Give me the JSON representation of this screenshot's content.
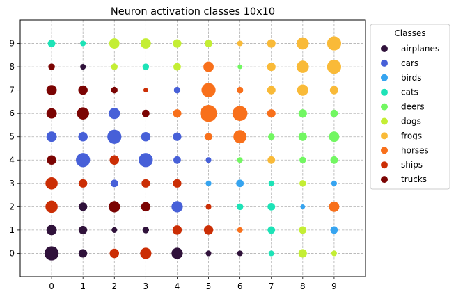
{
  "chart_data": {
    "type": "scatter",
    "title": "Neuron activation classes 10x10",
    "xlabel": "",
    "ylabel": "",
    "xlim": [
      -1,
      10
    ],
    "ylim": [
      -1,
      10
    ],
    "xticks": [
      0,
      1,
      2,
      3,
      4,
      5,
      6,
      7,
      8,
      9
    ],
    "yticks": [
      0,
      1,
      2,
      3,
      4,
      5,
      6,
      7,
      8,
      9
    ],
    "grid": true,
    "grid_style": "dashed",
    "legend": {
      "title": "Classes",
      "placement": "outside-right-top",
      "entries": [
        {
          "label": "airplanes",
          "color": "#30123b"
        },
        {
          "label": "cars",
          "color": "#4760d8"
        },
        {
          "label": "birds",
          "color": "#36a4f0"
        },
        {
          "label": "cats",
          "color": "#1de3b7"
        },
        {
          "label": "deers",
          "color": "#72f762"
        },
        {
          "label": "dogs",
          "color": "#c4ee34"
        },
        {
          "label": "frogs",
          "color": "#f9ba38"
        },
        {
          "label": "horses",
          "color": "#f8701b"
        },
        {
          "label": "ships",
          "color": "#cb2e05"
        },
        {
          "label": "trucks",
          "color": "#7b0403"
        }
      ]
    },
    "points": [
      {
        "x": 0,
        "y": 9,
        "class": "cats",
        "size": 0.4
      },
      {
        "x": 1,
        "y": 9,
        "class": "cats",
        "size": 0.3
      },
      {
        "x": 2,
        "y": 9,
        "class": "dogs",
        "size": 0.55
      },
      {
        "x": 3,
        "y": 9,
        "class": "dogs",
        "size": 0.55
      },
      {
        "x": 4,
        "y": 9,
        "class": "dogs",
        "size": 0.45
      },
      {
        "x": 5,
        "y": 9,
        "class": "dogs",
        "size": 0.4
      },
      {
        "x": 6,
        "y": 9,
        "class": "frogs",
        "size": 0.3
      },
      {
        "x": 7,
        "y": 9,
        "class": "frogs",
        "size": 0.45
      },
      {
        "x": 8,
        "y": 9,
        "class": "frogs",
        "size": 0.65
      },
      {
        "x": 9,
        "y": 9,
        "class": "frogs",
        "size": 0.75
      },
      {
        "x": 0,
        "y": 8,
        "class": "trucks",
        "size": 0.35
      },
      {
        "x": 1,
        "y": 8,
        "class": "airplanes",
        "size": 0.3
      },
      {
        "x": 2,
        "y": 8,
        "class": "dogs",
        "size": 0.35
      },
      {
        "x": 3,
        "y": 8,
        "class": "cats",
        "size": 0.35
      },
      {
        "x": 4,
        "y": 8,
        "class": "dogs",
        "size": 0.4
      },
      {
        "x": 5,
        "y": 8,
        "class": "horses",
        "size": 0.55
      },
      {
        "x": 6,
        "y": 8,
        "class": "deers",
        "size": 0.25
      },
      {
        "x": 7,
        "y": 8,
        "class": "frogs",
        "size": 0.45
      },
      {
        "x": 8,
        "y": 8,
        "class": "frogs",
        "size": 0.65
      },
      {
        "x": 9,
        "y": 8,
        "class": "frogs",
        "size": 0.75
      },
      {
        "x": 0,
        "y": 7,
        "class": "trucks",
        "size": 0.55
      },
      {
        "x": 1,
        "y": 7,
        "class": "trucks",
        "size": 0.5
      },
      {
        "x": 2,
        "y": 7,
        "class": "trucks",
        "size": 0.35
      },
      {
        "x": 3,
        "y": 7,
        "class": "ships",
        "size": 0.25
      },
      {
        "x": 4,
        "y": 7,
        "class": "cars",
        "size": 0.35
      },
      {
        "x": 5,
        "y": 7,
        "class": "horses",
        "size": 0.75
      },
      {
        "x": 6,
        "y": 7,
        "class": "horses",
        "size": 0.35
      },
      {
        "x": 7,
        "y": 7,
        "class": "frogs",
        "size": 0.45
      },
      {
        "x": 8,
        "y": 7,
        "class": "frogs",
        "size": 0.6
      },
      {
        "x": 9,
        "y": 7,
        "class": "frogs",
        "size": 0.45
      },
      {
        "x": 0,
        "y": 6,
        "class": "trucks",
        "size": 0.55
      },
      {
        "x": 1,
        "y": 6,
        "class": "trucks",
        "size": 0.65
      },
      {
        "x": 2,
        "y": 6,
        "class": "cars",
        "size": 0.6
      },
      {
        "x": 3,
        "y": 6,
        "class": "trucks",
        "size": 0.4
      },
      {
        "x": 4,
        "y": 6,
        "class": "horses",
        "size": 0.45
      },
      {
        "x": 5,
        "y": 6,
        "class": "horses",
        "size": 0.9
      },
      {
        "x": 6,
        "y": 6,
        "class": "horses",
        "size": 0.8
      },
      {
        "x": 7,
        "y": 6,
        "class": "horses",
        "size": 0.45
      },
      {
        "x": 8,
        "y": 6,
        "class": "deers",
        "size": 0.45
      },
      {
        "x": 9,
        "y": 6,
        "class": "deers",
        "size": 0.4
      },
      {
        "x": 0,
        "y": 5,
        "class": "cars",
        "size": 0.55
      },
      {
        "x": 1,
        "y": 5,
        "class": "cars",
        "size": 0.5
      },
      {
        "x": 2,
        "y": 5,
        "class": "cars",
        "size": 0.75
      },
      {
        "x": 3,
        "y": 5,
        "class": "cars",
        "size": 0.5
      },
      {
        "x": 4,
        "y": 5,
        "class": "cars",
        "size": 0.45
      },
      {
        "x": 5,
        "y": 5,
        "class": "horses",
        "size": 0.4
      },
      {
        "x": 6,
        "y": 5,
        "class": "horses",
        "size": 0.7
      },
      {
        "x": 7,
        "y": 5,
        "class": "deers",
        "size": 0.35
      },
      {
        "x": 8,
        "y": 5,
        "class": "deers",
        "size": 0.45
      },
      {
        "x": 9,
        "y": 5,
        "class": "deers",
        "size": 0.55
      },
      {
        "x": 0,
        "y": 4,
        "class": "trucks",
        "size": 0.5
      },
      {
        "x": 1,
        "y": 4,
        "class": "cars",
        "size": 0.75
      },
      {
        "x": 2,
        "y": 4,
        "class": "ships",
        "size": 0.5
      },
      {
        "x": 3,
        "y": 4,
        "class": "cars",
        "size": 0.75
      },
      {
        "x": 4,
        "y": 4,
        "class": "cars",
        "size": 0.4
      },
      {
        "x": 5,
        "y": 4,
        "class": "cars",
        "size": 0.3
      },
      {
        "x": 6,
        "y": 4,
        "class": "deers",
        "size": 0.3
      },
      {
        "x": 7,
        "y": 4,
        "class": "frogs",
        "size": 0.4
      },
      {
        "x": 8,
        "y": 4,
        "class": "deers",
        "size": 0.35
      },
      {
        "x": 9,
        "y": 4,
        "class": "deers",
        "size": 0.4
      },
      {
        "x": 0,
        "y": 3,
        "class": "ships",
        "size": 0.65
      },
      {
        "x": 1,
        "y": 3,
        "class": "ships",
        "size": 0.45
      },
      {
        "x": 2,
        "y": 3,
        "class": "cars",
        "size": 0.4
      },
      {
        "x": 3,
        "y": 3,
        "class": "ships",
        "size": 0.45
      },
      {
        "x": 4,
        "y": 3,
        "class": "ships",
        "size": 0.45
      },
      {
        "x": 5,
        "y": 3,
        "class": "birds",
        "size": 0.3
      },
      {
        "x": 6,
        "y": 3,
        "class": "birds",
        "size": 0.4
      },
      {
        "x": 7,
        "y": 3,
        "class": "cats",
        "size": 0.3
      },
      {
        "x": 8,
        "y": 3,
        "class": "dogs",
        "size": 0.35
      },
      {
        "x": 9,
        "y": 3,
        "class": "birds",
        "size": 0.3
      },
      {
        "x": 0,
        "y": 2,
        "class": "ships",
        "size": 0.65
      },
      {
        "x": 1,
        "y": 2,
        "class": "airplanes",
        "size": 0.45
      },
      {
        "x": 2,
        "y": 2,
        "class": "trucks",
        "size": 0.6
      },
      {
        "x": 3,
        "y": 2,
        "class": "trucks",
        "size": 0.5
      },
      {
        "x": 4,
        "y": 2,
        "class": "cars",
        "size": 0.6
      },
      {
        "x": 5,
        "y": 2,
        "class": "ships",
        "size": 0.3
      },
      {
        "x": 6,
        "y": 2,
        "class": "cats",
        "size": 0.35
      },
      {
        "x": 7,
        "y": 2,
        "class": "cats",
        "size": 0.4
      },
      {
        "x": 8,
        "y": 2,
        "class": "birds",
        "size": 0.25
      },
      {
        "x": 9,
        "y": 2,
        "class": "horses",
        "size": 0.55
      },
      {
        "x": 0,
        "y": 1,
        "class": "airplanes",
        "size": 0.55
      },
      {
        "x": 1,
        "y": 1,
        "class": "airplanes",
        "size": 0.45
      },
      {
        "x": 2,
        "y": 1,
        "class": "airplanes",
        "size": 0.3
      },
      {
        "x": 3,
        "y": 1,
        "class": "airplanes",
        "size": 0.35
      },
      {
        "x": 4,
        "y": 1,
        "class": "ships",
        "size": 0.5
      },
      {
        "x": 5,
        "y": 1,
        "class": "ships",
        "size": 0.5
      },
      {
        "x": 6,
        "y": 1,
        "class": "horses",
        "size": 0.3
      },
      {
        "x": 7,
        "y": 1,
        "class": "cats",
        "size": 0.4
      },
      {
        "x": 8,
        "y": 1,
        "class": "dogs",
        "size": 0.4
      },
      {
        "x": 9,
        "y": 1,
        "class": "birds",
        "size": 0.4
      },
      {
        "x": 0,
        "y": 0,
        "class": "airplanes",
        "size": 0.75
      },
      {
        "x": 1,
        "y": 0,
        "class": "airplanes",
        "size": 0.45
      },
      {
        "x": 2,
        "y": 0,
        "class": "ships",
        "size": 0.5
      },
      {
        "x": 3,
        "y": 0,
        "class": "ships",
        "size": 0.6
      },
      {
        "x": 4,
        "y": 0,
        "class": "airplanes",
        "size": 0.6
      },
      {
        "x": 5,
        "y": 0,
        "class": "airplanes",
        "size": 0.3
      },
      {
        "x": 6,
        "y": 0,
        "class": "airplanes",
        "size": 0.3
      },
      {
        "x": 7,
        "y": 0,
        "class": "cats",
        "size": 0.3
      },
      {
        "x": 8,
        "y": 0,
        "class": "dogs",
        "size": 0.45
      },
      {
        "x": 9,
        "y": 0,
        "class": "dogs",
        "size": 0.3
      }
    ]
  }
}
